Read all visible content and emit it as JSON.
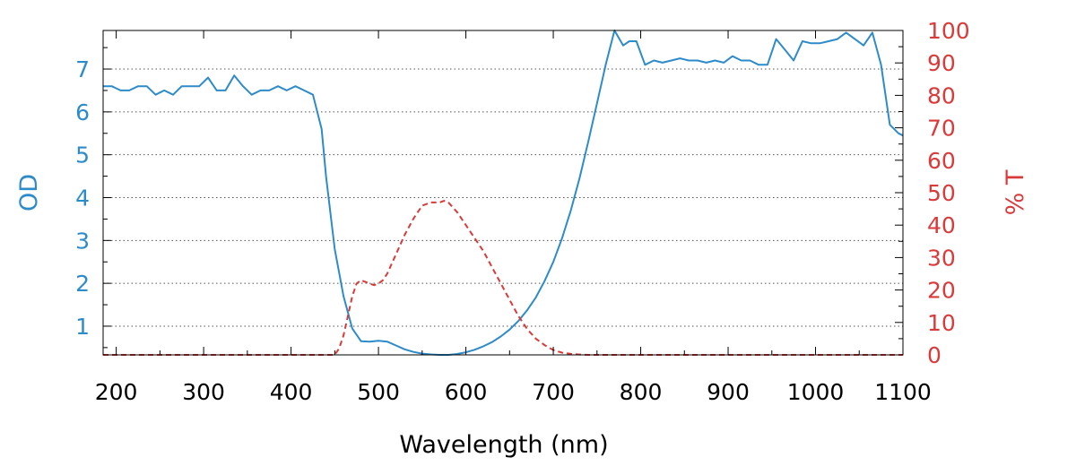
{
  "chart_data": {
    "type": "line",
    "xlabel": "Wavelength (nm)",
    "ylabel": "OD",
    "y2label": "% T",
    "xlim": [
      185,
      1100
    ],
    "ylim": [
      0.33,
      7.9
    ],
    "y2lim": [
      0,
      100
    ],
    "xticks": [
      200,
      300,
      400,
      500,
      600,
      700,
      800,
      900,
      1000,
      1100
    ],
    "yticks": [
      1,
      2,
      3,
      4,
      5,
      6,
      7
    ],
    "y2ticks": [
      0,
      10,
      20,
      30,
      40,
      50,
      60,
      70,
      80,
      90,
      100
    ],
    "grid": "horizontal dotted",
    "colors": {
      "od": "#2e8bc9",
      "transmission": "#d93a3a"
    },
    "series": [
      {
        "axis": "left",
        "style": "solid",
        "x": [
          185,
          195,
          205,
          215,
          225,
          235,
          245,
          255,
          265,
          275,
          285,
          295,
          305,
          315,
          325,
          335,
          345,
          355,
          365,
          375,
          385,
          395,
          405,
          415,
          425,
          435,
          440,
          450,
          460,
          470,
          480,
          490,
          500,
          510,
          520,
          530,
          540,
          550,
          560,
          570,
          580,
          590,
          600,
          610,
          620,
          630,
          640,
          650,
          660,
          670,
          680,
          690,
          700,
          710,
          720,
          730,
          740,
          750,
          760,
          770,
          780,
          787,
          795,
          805,
          815,
          825,
          835,
          845,
          855,
          865,
          875,
          885,
          895,
          905,
          915,
          925,
          935,
          945,
          955,
          965,
          975,
          985,
          995,
          1005,
          1015,
          1025,
          1035,
          1045,
          1055,
          1065,
          1075,
          1085,
          1095,
          1100
        ],
        "y": [
          6.6,
          6.6,
          6.5,
          6.5,
          6.6,
          6.6,
          6.4,
          6.5,
          6.4,
          6.6,
          6.6,
          6.6,
          6.8,
          6.5,
          6.5,
          6.85,
          6.6,
          6.4,
          6.5,
          6.5,
          6.6,
          6.5,
          6.6,
          6.5,
          6.4,
          5.6,
          4.5,
          2.8,
          1.7,
          0.95,
          0.65,
          0.64,
          0.66,
          0.64,
          0.55,
          0.46,
          0.4,
          0.36,
          0.34,
          0.33,
          0.33,
          0.35,
          0.39,
          0.45,
          0.53,
          0.63,
          0.76,
          0.92,
          1.12,
          1.37,
          1.67,
          2.05,
          2.5,
          3.05,
          3.7,
          4.45,
          5.3,
          6.2,
          7.1,
          7.9,
          7.55,
          7.65,
          7.65,
          7.1,
          7.2,
          7.15,
          7.2,
          7.25,
          7.2,
          7.2,
          7.15,
          7.2,
          7.15,
          7.3,
          7.2,
          7.2,
          7.1,
          7.1,
          7.7,
          7.45,
          7.2,
          7.65,
          7.6,
          7.6,
          7.65,
          7.7,
          7.85,
          7.7,
          7.55,
          7.85,
          7.1,
          5.7,
          5.5,
          5.45
        ]
      },
      {
        "axis": "right",
        "style": "dashed",
        "x": [
          185,
          450,
          455,
          460,
          465,
          470,
          475,
          480,
          485,
          490,
          495,
          500,
          505,
          510,
          520,
          530,
          540,
          550,
          560,
          570,
          575,
          580,
          590,
          600,
          610,
          620,
          630,
          640,
          650,
          660,
          670,
          680,
          690,
          700,
          710,
          720,
          730,
          740,
          760,
          800,
          1100
        ],
        "y": [
          0,
          0,
          2,
          6,
          12,
          18,
          22,
          23,
          22.5,
          22,
          21.5,
          22,
          23,
          25,
          31,
          37,
          42,
          46,
          47,
          47,
          47.5,
          47,
          44,
          40,
          36,
          32,
          27,
          22,
          17,
          12,
          8,
          5,
          3,
          1.5,
          0.7,
          0.3,
          0.1,
          0,
          0,
          0,
          0
        ]
      }
    ]
  }
}
